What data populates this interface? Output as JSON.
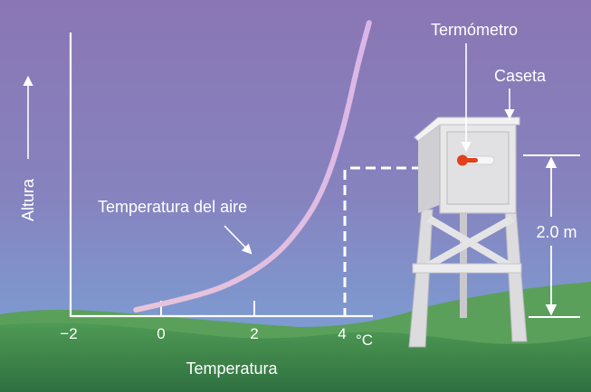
{
  "chart_data": {
    "type": "line",
    "xlabel": "Temperatura",
    "ylabel": "Altura",
    "x_unit": "°C",
    "x_ticks": [
      "−2",
      "0",
      "2",
      "4"
    ],
    "xlim": [
      -2,
      4.4
    ],
    "series": [
      {
        "name": "Temperatura del aire",
        "x": [
          -0.55,
          0.5,
          1.5,
          2.5,
          3.2,
          3.6,
          3.9,
          4.1,
          4.3,
          4.55
        ],
        "y": [
          0.0,
          0.15,
          0.35,
          0.75,
          1.3,
          1.8,
          2.4,
          2.9,
          3.5,
          4.1
        ]
      }
    ],
    "measurement_height": {
      "x": 4.0,
      "y": 2.0
    }
  },
  "labels": {
    "thermometer": "Termómetro",
    "shelter": "Caseta",
    "height": "2.0 m"
  },
  "colors": {
    "sky_top": "#8a76b4",
    "sky_bottom": "#7fa0d8",
    "hill_dark": "#3f8a4b",
    "hill_light": "#5ea35a",
    "curve": "#e4c4e6",
    "shelter": "#e9e9ea",
    "thermo_red": "#e0401c"
  },
  "icons": [
    "moon-icon"
  ]
}
